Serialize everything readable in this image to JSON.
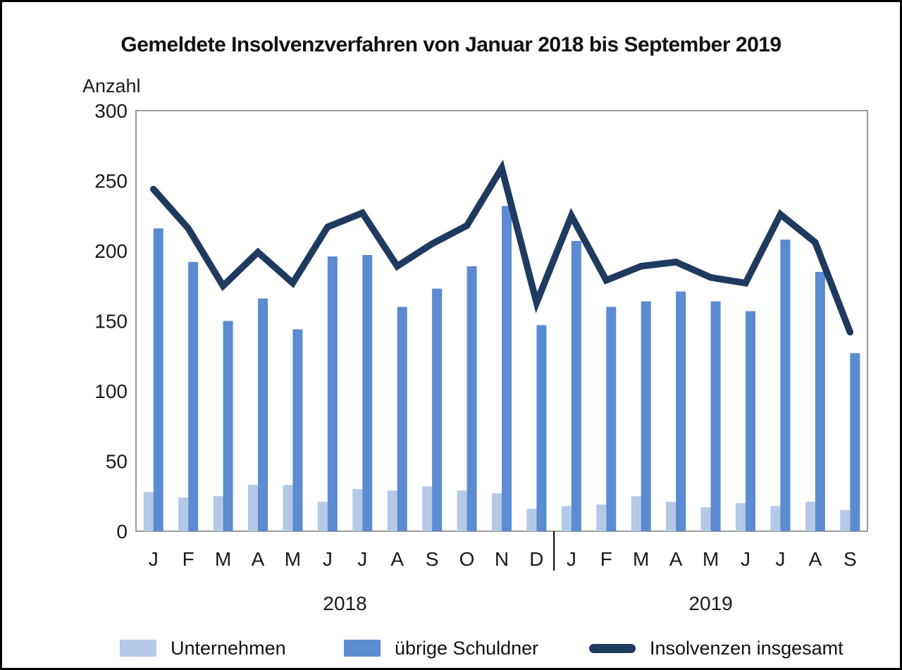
{
  "chart_data": {
    "type": "bar+line",
    "title": "Gemeldete Insolvenzverfahren von Januar 2018 bis September 2019",
    "ylabel": "Anzahl",
    "ylim": [
      0,
      300
    ],
    "yticks": [
      0,
      50,
      100,
      150,
      200,
      250,
      300
    ],
    "categories": [
      "J",
      "F",
      "M",
      "A",
      "M",
      "J",
      "J",
      "A",
      "S",
      "O",
      "N",
      "D",
      "J",
      "F",
      "M",
      "A",
      "M",
      "J",
      "J",
      "A",
      "S"
    ],
    "year_groups": [
      {
        "label": "2018",
        "start": 0,
        "end": 11
      },
      {
        "label": "2019",
        "start": 12,
        "end": 20
      }
    ],
    "series": [
      {
        "name": "Unternehmen",
        "type": "bar",
        "color": "#b4c9e7",
        "values": [
          28,
          24,
          25,
          33,
          33,
          21,
          30,
          29,
          32,
          29,
          27,
          16,
          18,
          19,
          25,
          21,
          17,
          20,
          18,
          21,
          15
        ]
      },
      {
        "name": "übrige Schuldner",
        "type": "bar",
        "color": "#5b8bd0",
        "values": [
          216,
          192,
          150,
          166,
          144,
          196,
          197,
          160,
          173,
          189,
          232,
          147,
          207,
          160,
          164,
          171,
          164,
          157,
          208,
          185,
          127
        ]
      },
      {
        "name": "Insolvenzen insgesamt",
        "type": "line",
        "color": "#1f3a5f",
        "values": [
          244,
          216,
          175,
          199,
          177,
          217,
          227,
          189,
          205,
          218,
          259,
          163,
          225,
          179,
          189,
          192,
          181,
          177,
          226,
          206,
          142
        ]
      }
    ],
    "grid": false,
    "legend_position": "bottom",
    "colors": {
      "plot_border": "#7a7a7a",
      "axis_text": "#1a1a1a",
      "separator": "#000000"
    }
  }
}
